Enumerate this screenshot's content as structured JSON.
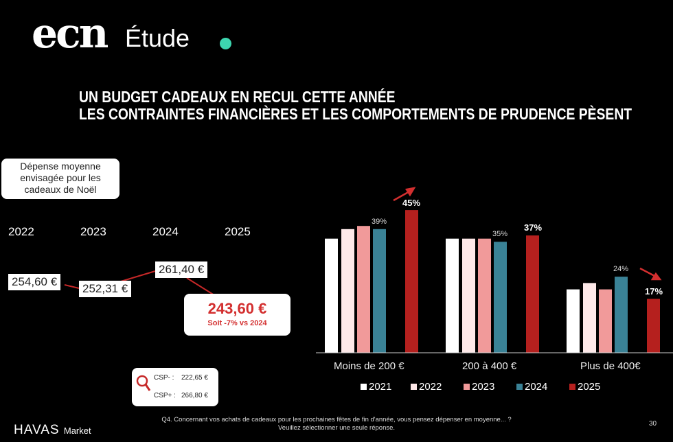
{
  "brand": {
    "logo": "ecn",
    "subtitle": "Étude",
    "accent": "#3dd6b0"
  },
  "title": {
    "line1": "UN BUDGET CADEAUX  EN RECUL CETTE ANNÉE",
    "line2": "LES CONTRAINTES FINANCIÈRES ET LES COMPORTEMENTS DE PRUDENCE PÈSENT"
  },
  "left_panel": {
    "label": "Dépense moyenne envisagée pour les cadeaux de Noël",
    "years": [
      "2022",
      "2023",
      "2024",
      "2025"
    ],
    "values": [
      "254,60 €",
      "252,31 €",
      "261,40 €",
      "243,60 €"
    ],
    "highlight_note": "Soit -7% vs 2024",
    "csp": {
      "minus_label": "CSP- :",
      "minus_value": "222,65 €",
      "plus_label": "CSP+ :",
      "plus_value": "266,80 €",
      "icon": "magnifier-icon"
    }
  },
  "chart_data": {
    "type": "bar",
    "categories": [
      "Moins de 200 €",
      "200 à 400 €",
      "Plus de 400€"
    ],
    "series": [
      {
        "name": "2021",
        "color": "#ffffff",
        "values": [
          36,
          36,
          20
        ]
      },
      {
        "name": "2022",
        "color": "#fde8e8",
        "values": [
          39,
          36,
          22
        ]
      },
      {
        "name": "2023",
        "color": "#f19a9a",
        "values": [
          40,
          36,
          20
        ]
      },
      {
        "name": "2024",
        "color": "#3a8296",
        "values": [
          39,
          35,
          24
        ]
      },
      {
        "name": "2025",
        "color": "#b5201e",
        "values": [
          45,
          37,
          17
        ]
      }
    ],
    "data_labels": {
      "2024": [
        "39%",
        "35%",
        "24%"
      ],
      "2025": [
        "45%",
        "37%",
        "17%"
      ]
    },
    "trend_arrows": [
      "up",
      "none",
      "down"
    ],
    "legend": "bottom",
    "ylim": [
      0,
      50
    ]
  },
  "footer": {
    "brand": "HAVAS",
    "brand_suffix": "Market",
    "question": "Q4. Concernant vos achats de cadeaux pour les prochaines fêtes de fin d'année, vous pensez dépenser en moyenne... ?",
    "instruction": "Veuillez sélectionner une seule réponse.",
    "page": "30"
  }
}
